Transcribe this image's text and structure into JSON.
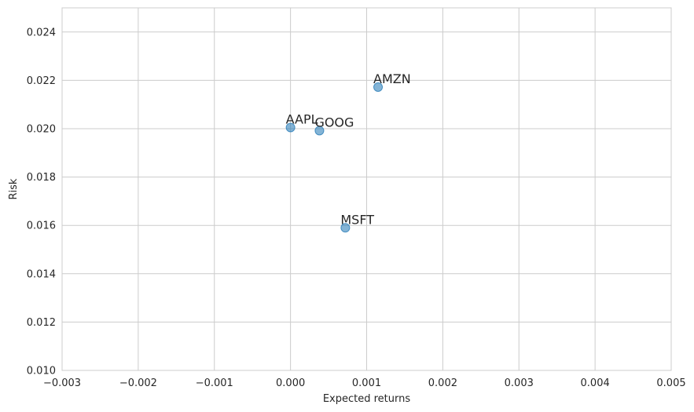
{
  "chart_data": {
    "type": "scatter",
    "title": "",
    "xlabel": "Expected returns",
    "ylabel": "Risk",
    "xlim": [
      -0.003,
      0.005
    ],
    "ylim": [
      0.01,
      0.025
    ],
    "xticks": [
      -0.003,
      -0.002,
      -0.001,
      0.0,
      0.001,
      0.002,
      0.003,
      0.004,
      0.005
    ],
    "xtick_labels": [
      "−0.003",
      "−0.002",
      "−0.001",
      "0.000",
      "0.001",
      "0.002",
      "0.003",
      "0.004",
      "0.005"
    ],
    "yticks": [
      0.01,
      0.012,
      0.014,
      0.016,
      0.018,
      0.02,
      0.022,
      0.024
    ],
    "ytick_labels": [
      "0.010",
      "0.012",
      "0.014",
      "0.016",
      "0.018",
      "0.020",
      "0.022",
      "0.024"
    ],
    "grid": true,
    "points": [
      {
        "label": "AAPL",
        "x": 0.0,
        "y": 0.02005
      },
      {
        "label": "GOOG",
        "x": 0.00038,
        "y": 0.01992
      },
      {
        "label": "AMZN",
        "x": 0.00115,
        "y": 0.02172
      },
      {
        "label": "MSFT",
        "x": 0.00072,
        "y": 0.0159
      }
    ],
    "marker_color": "#1f77b4"
  }
}
